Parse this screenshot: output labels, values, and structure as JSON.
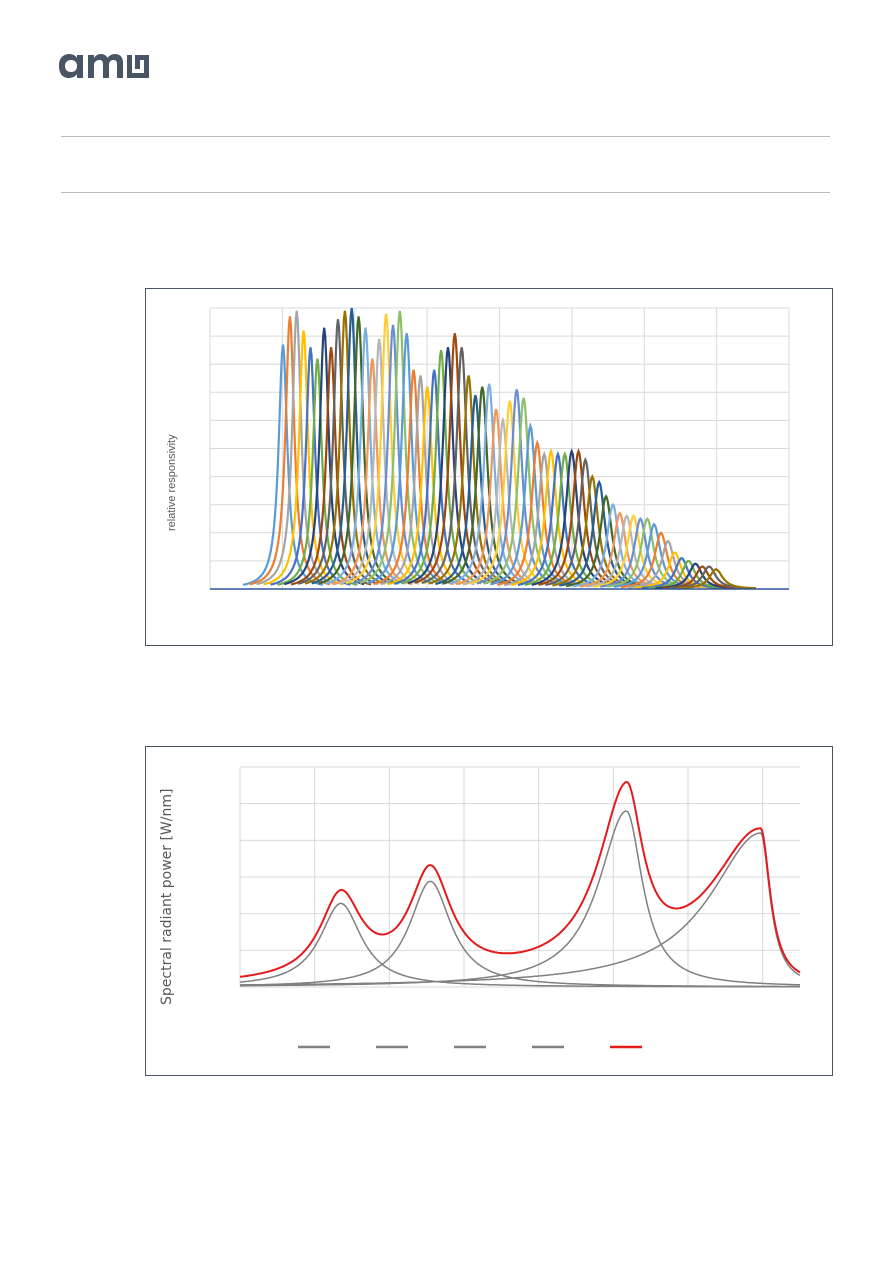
{
  "header": {
    "logo_text": "ams",
    "logo_color": "#4a5563"
  },
  "chart_data": [
    {
      "type": "line",
      "title": "",
      "xlabel": "",
      "ylabel": "relative responsivity",
      "grid": true,
      "legend": "none",
      "description_series": "64 narrow-band channel responsivity curves",
      "series_colors": [
        "#5b9bd5",
        "#ed7d31",
        "#a5a5a5",
        "#ffc000",
        "#4472c4",
        "#70ad47",
        "#264478",
        "#9e480e",
        "#636363",
        "#997300",
        "#255e91",
        "#43682b",
        "#7cafdd",
        "#f1975a",
        "#b7b7b7",
        "#ffcd33",
        "#698ed0",
        "#8cc168"
      ],
      "peaks": [
        0.87,
        0.97,
        0.99,
        0.92,
        0.86,
        0.82,
        0.93,
        0.86,
        0.96,
        0.99,
        1.0,
        0.97,
        0.93,
        0.82,
        0.89,
        0.98,
        0.94,
        0.99,
        0.91,
        0.78,
        0.76,
        0.72,
        0.78,
        0.85,
        0.86,
        0.91,
        0.86,
        0.76,
        0.69,
        0.72,
        0.73,
        0.64,
        0.6,
        0.67,
        0.71,
        0.68,
        0.58,
        0.52,
        0.48,
        0.49,
        0.48,
        0.48,
        0.49,
        0.49,
        0.46,
        0.4,
        0.38,
        0.33,
        0.3,
        0.27,
        0.26,
        0.26,
        0.25,
        0.25,
        0.23,
        0.2,
        0.17,
        0.13,
        0.11,
        0.1,
        0.09,
        0.08,
        0.08,
        0.07
      ]
    },
    {
      "type": "line",
      "title": "",
      "xlabel": "",
      "ylabel": "Spectral radiant power  [W/nm]",
      "grid": true,
      "legend": "bottom",
      "series": [
        {
          "color": "#808080",
          "peak_x": 0.18,
          "peak_y": 0.38
        },
        {
          "color": "#808080",
          "peak_x": 0.34,
          "peak_y": 0.48
        },
        {
          "color": "#808080",
          "peak_x": 0.69,
          "peak_y": 0.8
        },
        {
          "color": "#808080",
          "peak_x": 0.93,
          "peak_y": 0.7
        },
        {
          "color": "#e41a1c",
          "role": "sum"
        }
      ]
    }
  ]
}
